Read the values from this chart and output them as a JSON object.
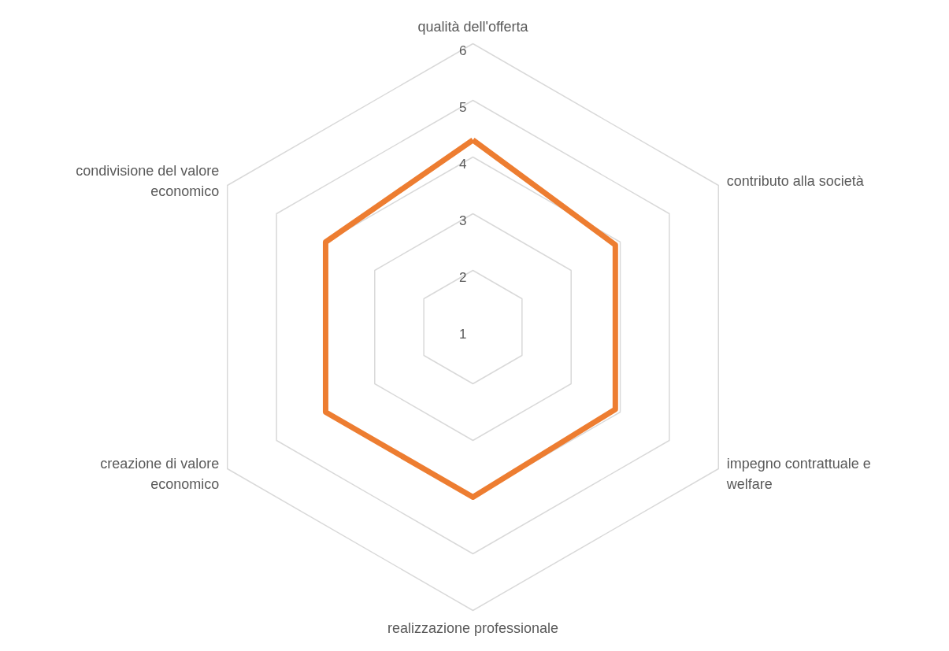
{
  "chart_data": {
    "type": "radar",
    "categories": [
      "qualità dell'offerta",
      "contributo alla società",
      "impegno contrattuale e welfare",
      "realizzazione professionale",
      "creazione di valore economico",
      "condivisione del valore economico"
    ],
    "series": [
      {
        "color": "#ed7d31",
        "values": [
          4.3,
          3.9,
          3.9,
          4.0,
          4.0,
          4.0
        ]
      }
    ],
    "ylim": [
      1,
      6
    ],
    "yticks": [
      1,
      2,
      3,
      4,
      5,
      6
    ],
    "grid": true
  }
}
